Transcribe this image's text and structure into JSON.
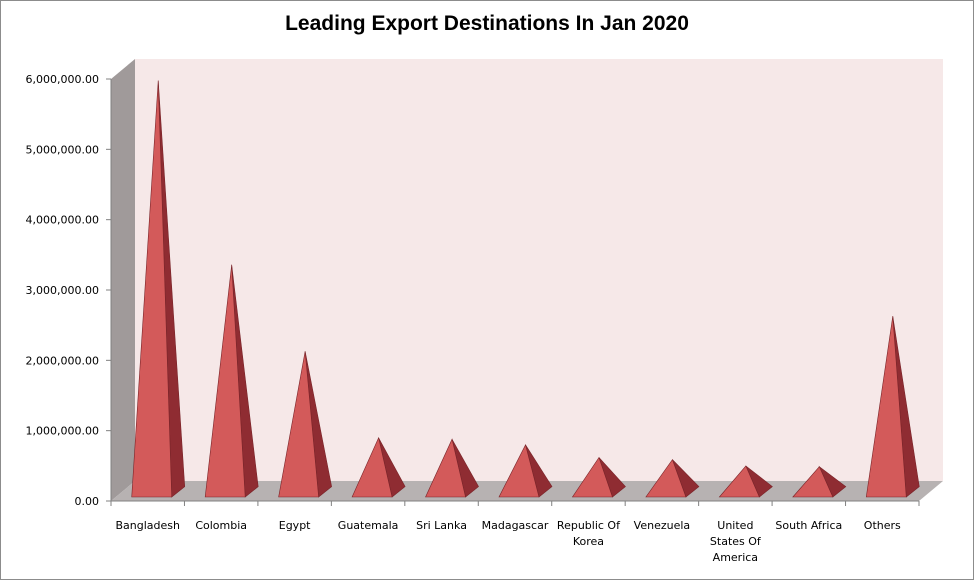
{
  "chart_data": {
    "type": "bar",
    "bar_shape": "pyramid-3d",
    "title": "Leading Export Destinations In Jan 2020",
    "xlabel": "",
    "ylabel": "",
    "categories": [
      [
        "Bangladesh"
      ],
      [
        "Colombia"
      ],
      [
        "Egypt"
      ],
      [
        "Guatemala"
      ],
      [
        "Sri Lanka"
      ],
      [
        "Madagascar"
      ],
      [
        "Republic Of",
        "Korea"
      ],
      [
        "Venezuela"
      ],
      [
        "United",
        "States Of",
        "America"
      ],
      [
        "South Africa"
      ],
      [
        "Others"
      ]
    ],
    "values": [
      5950000,
      3330000,
      2100000,
      870000,
      850000,
      770000,
      590000,
      560000,
      470000,
      460000,
      2600000
    ],
    "ylim": [
      0,
      6000000
    ],
    "yticks": [
      "0.00",
      "1,000,000.00",
      "2,000,000.00",
      "3,000,000.00",
      "4,000,000.00",
      "5,000,000.00",
      "6,000,000.00"
    ],
    "grid": false,
    "legend": "none",
    "colors": {
      "bar_front": "#d35a5a",
      "bar_side": "#8f2c32",
      "bar_edge": "#7a2429",
      "wall": "#f6e8e8",
      "side_wall": "#a09a9a",
      "floor": "#b7b2b2"
    }
  }
}
